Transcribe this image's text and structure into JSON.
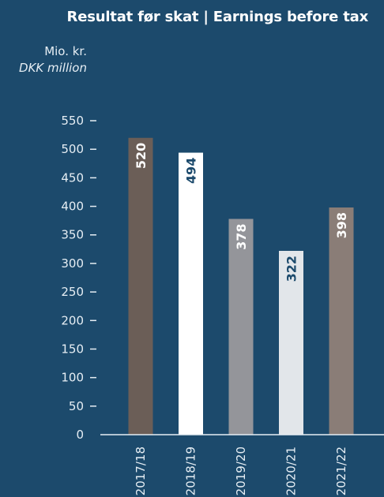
{
  "chart_data": {
    "type": "bar",
    "title": "Resultat før skat | Earnings before tax",
    "ylabel_da": "Mio. kr.",
    "ylabel_en": "DKK million",
    "xlabel": "",
    "categories": [
      "2017/18",
      "2018/19",
      "2019/20",
      "2020/21",
      "2021/22"
    ],
    "values": [
      520,
      494,
      378,
      322,
      398
    ],
    "ylim": [
      0,
      550
    ],
    "yticks": [
      0,
      50,
      100,
      150,
      200,
      250,
      300,
      350,
      400,
      450,
      500,
      550
    ],
    "bar_colors": [
      "#6b5e57",
      "#ffffff",
      "#94959a",
      "#e2e6ea",
      "#8a7d77"
    ],
    "label_colors": [
      "#ffffff",
      "#1c4a6c",
      "#ffffff",
      "#1c4a6c",
      "#ffffff"
    ],
    "grid": false,
    "legend": "none"
  },
  "colors": {
    "background": "#1c4a6c",
    "text": "#ffffff",
    "axis": "#e6eef4"
  }
}
